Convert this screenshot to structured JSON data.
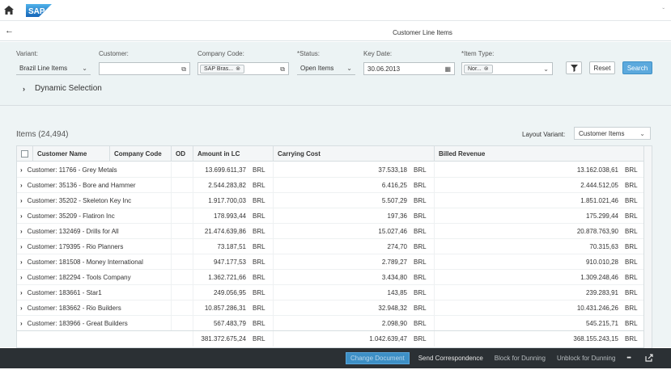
{
  "shell": {
    "logo": "SAP",
    "home_icon": "home-icon",
    "right_mark": "ˇ"
  },
  "header": {
    "back_icon": "←",
    "title": "Customer Line Items"
  },
  "filters": {
    "variant": {
      "label": "Variant:",
      "value": "Brazil Line Items"
    },
    "customer": {
      "label": "Customer:",
      "value": ""
    },
    "company_code": {
      "label": "Company Code:",
      "token": "SAP Bras..."
    },
    "status": {
      "label": "*Status:",
      "value": "Open Items"
    },
    "key_date": {
      "label": "Key Date:",
      "value": "30.06.2013"
    },
    "item_type": {
      "label": "*Item Type:",
      "token": "Nor..."
    },
    "reset_label": "Reset",
    "search_label": "Search",
    "dynamic_selection": "Dynamic Selection"
  },
  "table": {
    "title": "Items (24,494)",
    "layout_variant_label": "Layout Variant:",
    "layout_variant_value": "Customer Items",
    "columns": [
      "Customer Name",
      "Company Code",
      "OD",
      "Amount in LC",
      "Carrying Cost",
      "Billed Revenue"
    ],
    "rows": [
      {
        "name": "Customer: 11766 - Grey Metals",
        "amount": "13.699.611,37",
        "cur1": "BRL",
        "carrying": "37.533,18",
        "cur2": "BRL",
        "billed": "13.162.038,61",
        "cur3": "BRL"
      },
      {
        "name": "Customer: 35136 - Bore and Hammer",
        "amount": "2.544.283,82",
        "cur1": "BRL",
        "carrying": "6.416,25",
        "cur2": "BRL",
        "billed": "2.444.512,05",
        "cur3": "BRL"
      },
      {
        "name": "Customer: 35202 - Skeleton Key Inc",
        "amount": "1.917.700,03",
        "cur1": "BRL",
        "carrying": "5.507,29",
        "cur2": "BRL",
        "billed": "1.851.021,46",
        "cur3": "BRL"
      },
      {
        "name": "Customer: 35209 - Flatiron Inc",
        "amount": "178.993,44",
        "cur1": "BRL",
        "carrying": "197,36",
        "cur2": "BRL",
        "billed": "175.299,44",
        "cur3": "BRL"
      },
      {
        "name": "Customer: 132469 - Drills for All",
        "amount": "21.474.639,86",
        "cur1": "BRL",
        "carrying": "15.027,46",
        "cur2": "BRL",
        "billed": "20.878.763,90",
        "cur3": "BRL"
      },
      {
        "name": "Customer: 179395 - Rio Planners",
        "amount": "73.187,51",
        "cur1": "BRL",
        "carrying": "274,70",
        "cur2": "BRL",
        "billed": "70.315,63",
        "cur3": "BRL"
      },
      {
        "name": "Customer: 181508 - Money International",
        "amount": "947.177,53",
        "cur1": "BRL",
        "carrying": "2.789,27",
        "cur2": "BRL",
        "billed": "910.010,28",
        "cur3": "BRL"
      },
      {
        "name": "Customer: 182294 - Tools Company",
        "amount": "1.362.721,66",
        "cur1": "BRL",
        "carrying": "3.434,80",
        "cur2": "BRL",
        "billed": "1.309.248,46",
        "cur3": "BRL"
      },
      {
        "name": "Customer: 183661 - Star1",
        "amount": "249.056,95",
        "cur1": "BRL",
        "carrying": "143,85",
        "cur2": "BRL",
        "billed": "239.283,91",
        "cur3": "BRL"
      },
      {
        "name": "Customer: 183662 - Rio Builders",
        "amount": "10.857.286,31",
        "cur1": "BRL",
        "carrying": "32.948,32",
        "cur2": "BRL",
        "billed": "10.431.246,26",
        "cur3": "BRL"
      },
      {
        "name": "Customer: 183966 - Great Builders",
        "amount": "567.483,79",
        "cur1": "BRL",
        "carrying": "2.098,90",
        "cur2": "BRL",
        "billed": "545.215,71",
        "cur3": "BRL"
      }
    ],
    "totals": {
      "amount": "381.372.675,24",
      "cur1": "BRL",
      "carrying": "1.042.639,47",
      "cur2": "BRL",
      "billed": "368.155.243,15",
      "cur3": "BRL"
    }
  },
  "footer": {
    "change_document": "Change Document",
    "send_correspondence": "Send Correspondence",
    "block_for_dunning": "Block for Dunning",
    "unblock_for_dunning": "Unblock for Dunning",
    "more": "•••"
  }
}
